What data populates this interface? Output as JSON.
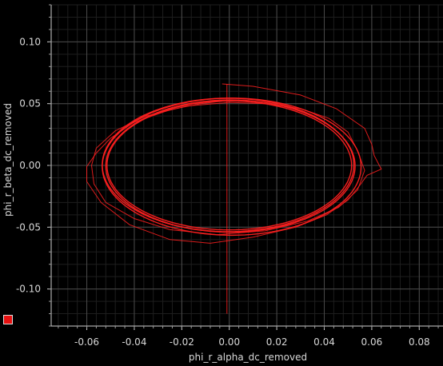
{
  "chart_data": {
    "type": "line",
    "title": "",
    "xlabel": "phi_r_alpha_dc_removed",
    "ylabel": "phi_r_beta_dc_removed",
    "xlim": [
      -0.075,
      0.09
    ],
    "ylim": [
      -0.13,
      0.13
    ],
    "x_ticks": [
      -0.06,
      -0.04,
      -0.02,
      0.0,
      0.02,
      0.04,
      0.06,
      0.08
    ],
    "x_tick_labels": [
      "-0.06",
      "-0.04",
      "-0.02",
      "0.00",
      "0.02",
      "0.04",
      "0.06",
      "0.08"
    ],
    "y_ticks": [
      0.1,
      0.05,
      0.0,
      -0.05,
      -0.1
    ],
    "y_tick_labels": [
      "0.10",
      "0.05",
      "0.00",
      "-0.05",
      "-0.10"
    ],
    "grid": true,
    "legend": "bottom-left swatch",
    "series": [
      {
        "color": "#ff2020",
        "loops": [
          {
            "cx": 0.0,
            "cy": 0.0,
            "rx": 0.0515,
            "ry": 0.0522
          },
          {
            "cx": 0.0005,
            "cy": -0.0005,
            "rx": 0.0525,
            "ry": 0.0535
          },
          {
            "cx": -0.0005,
            "cy": 0.0004,
            "rx": 0.053,
            "ry": 0.054
          },
          {
            "cx": 0.001,
            "cy": -0.001,
            "rx": 0.0545,
            "ry": 0.0555
          }
        ],
        "outer_trace": [
          [
            -0.003,
            0.066
          ],
          [
            0.01,
            0.064
          ],
          [
            0.03,
            0.057
          ],
          [
            0.045,
            0.046
          ],
          [
            0.057,
            0.03
          ],
          [
            0.06,
            0.017
          ],
          [
            0.061,
            0.008
          ],
          [
            0.064,
            -0.003
          ],
          [
            0.058,
            -0.008
          ],
          [
            0.055,
            -0.016
          ],
          [
            0.05,
            -0.028
          ],
          [
            0.041,
            -0.04
          ],
          [
            0.028,
            -0.05
          ],
          [
            0.01,
            -0.058
          ],
          [
            -0.008,
            -0.063
          ],
          [
            -0.025,
            -0.06
          ],
          [
            -0.042,
            -0.048
          ],
          [
            -0.054,
            -0.03
          ],
          [
            -0.06,
            -0.013
          ],
          [
            -0.06,
            -0.001
          ],
          [
            -0.056,
            0.01
          ],
          [
            -0.05,
            0.022
          ],
          [
            -0.04,
            0.035
          ],
          [
            -0.025,
            0.045
          ],
          [
            -0.012,
            0.05
          ],
          [
            -0.003,
            0.052
          ]
        ],
        "second_trace": [
          [
            0.0,
            0.051
          ],
          [
            0.015,
            0.05
          ],
          [
            0.03,
            0.046
          ],
          [
            0.042,
            0.038
          ],
          [
            0.05,
            0.027
          ],
          [
            0.054,
            0.012
          ],
          [
            0.057,
            -0.004
          ],
          [
            0.054,
            -0.02
          ],
          [
            0.046,
            -0.034
          ],
          [
            0.033,
            -0.045
          ],
          [
            0.015,
            -0.053
          ],
          [
            -0.005,
            -0.056
          ],
          [
            -0.025,
            -0.052
          ],
          [
            -0.04,
            -0.043
          ],
          [
            -0.052,
            -0.03
          ],
          [
            -0.057,
            -0.015
          ],
          [
            -0.058,
            0.0
          ],
          [
            -0.056,
            0.014
          ],
          [
            -0.048,
            0.028
          ],
          [
            -0.035,
            0.04
          ],
          [
            -0.018,
            0.048
          ],
          [
            0.0,
            0.051
          ]
        ],
        "vertical_trace": [
          [
            -0.001,
            0.066
          ],
          [
            -0.001,
            0.0
          ],
          [
            -0.001,
            -0.12
          ]
        ]
      }
    ]
  },
  "legend": {
    "color": "#e81010"
  }
}
